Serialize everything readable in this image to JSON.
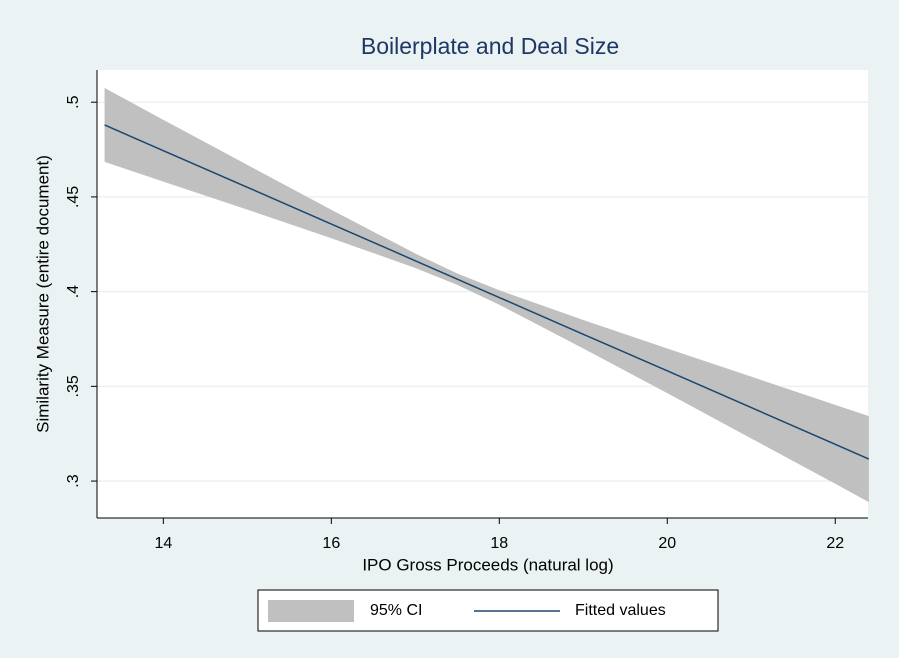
{
  "chart_data": {
    "type": "line-ci",
    "title": "Boilerplate and Deal Size",
    "xlabel": "IPO Gross Proceeds (natural log)",
    "ylabel": "Similarity Measure (entire document)",
    "x": [
      13.3,
      14,
      15,
      16,
      17,
      17.5,
      18,
      19,
      20,
      21,
      22,
      22.4
    ],
    "series": [
      {
        "name": "95% CI",
        "color": "#c0c0c0",
        "upper": [
          0.5075,
          0.4907,
          0.4669,
          0.4432,
          0.4201,
          0.4096,
          0.4007,
          0.385,
          0.37,
          0.3551,
          0.3402,
          0.3343
        ],
        "lower": [
          0.4685,
          0.4581,
          0.4433,
          0.4282,
          0.4125,
          0.4036,
          0.3931,
          0.37,
          0.3464,
          0.3225,
          0.2986,
          0.2889
        ]
      },
      {
        "name": "Fitted values",
        "color": "#1a476f",
        "values": [
          0.488,
          0.4744,
          0.4551,
          0.4357,
          0.4163,
          0.4066,
          0.3969,
          0.3775,
          0.3582,
          0.3388,
          0.3194,
          0.3116
        ]
      }
    ],
    "xlim": [
      13.21,
      22.39
    ],
    "ylim": [
      0.2805,
      0.517
    ],
    "xticks": [
      14,
      16,
      18,
      20,
      22
    ],
    "yticks": [
      {
        "value": 0.3,
        "label": ".3"
      },
      {
        "value": 0.35,
        "label": ".35"
      },
      {
        "value": 0.4,
        "label": ".4"
      },
      {
        "value": 0.45,
        "label": ".45"
      },
      {
        "value": 0.5,
        "label": ".5"
      }
    ],
    "grid": true
  }
}
